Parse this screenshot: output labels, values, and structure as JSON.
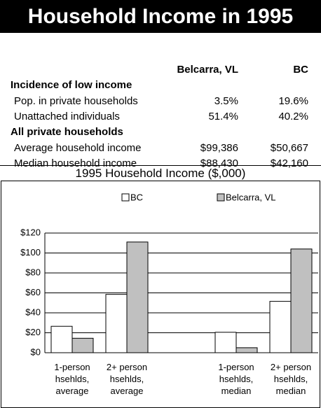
{
  "header": {
    "title": "Household Income in 1995"
  },
  "table": {
    "columns": [
      "Belcarra, VL",
      "BC"
    ],
    "sections": [
      {
        "title": "Incidence of low income",
        "rows": [
          {
            "label": "Pop. in private households",
            "values": [
              "3.5%",
              "19.6%"
            ]
          },
          {
            "label": "Unattached individuals",
            "values": [
              "51.4%",
              "40.2%"
            ]
          }
        ]
      },
      {
        "title": "All private households",
        "rows": [
          {
            "label": "Average household income",
            "values": [
              "$99,386",
              "$50,667"
            ]
          },
          {
            "label": "Median household income",
            "values": [
              "$88,430",
              "$42,160"
            ]
          }
        ]
      }
    ]
  },
  "chart_data": {
    "type": "bar",
    "title": "1995 Household Income ($,000)",
    "categories": [
      "1-person hsehlds, average",
      "2+ person hsehlds, average",
      null,
      "1-person hsehlds, median",
      "2+ person hsehlds, median"
    ],
    "series": [
      {
        "name": "BC",
        "color": "#ffffff",
        "values": [
          26.5,
          58.5,
          null,
          20.5,
          51.5
        ]
      },
      {
        "name": "Belcarra, VL",
        "color": "#c0c0c0",
        "values": [
          14.5,
          111,
          null,
          5,
          104
        ]
      }
    ],
    "ylim": [
      0,
      120
    ],
    "yticks": [
      {
        "value": 0,
        "label": "$0"
      },
      {
        "value": 20,
        "label": "$20"
      },
      {
        "value": 40,
        "label": "$40"
      },
      {
        "value": 60,
        "label": "$60"
      },
      {
        "value": 80,
        "label": "$80"
      },
      {
        "value": 100,
        "label": "$100"
      },
      {
        "value": 120,
        "label": "$120"
      }
    ],
    "grid": true,
    "legend": "top"
  }
}
